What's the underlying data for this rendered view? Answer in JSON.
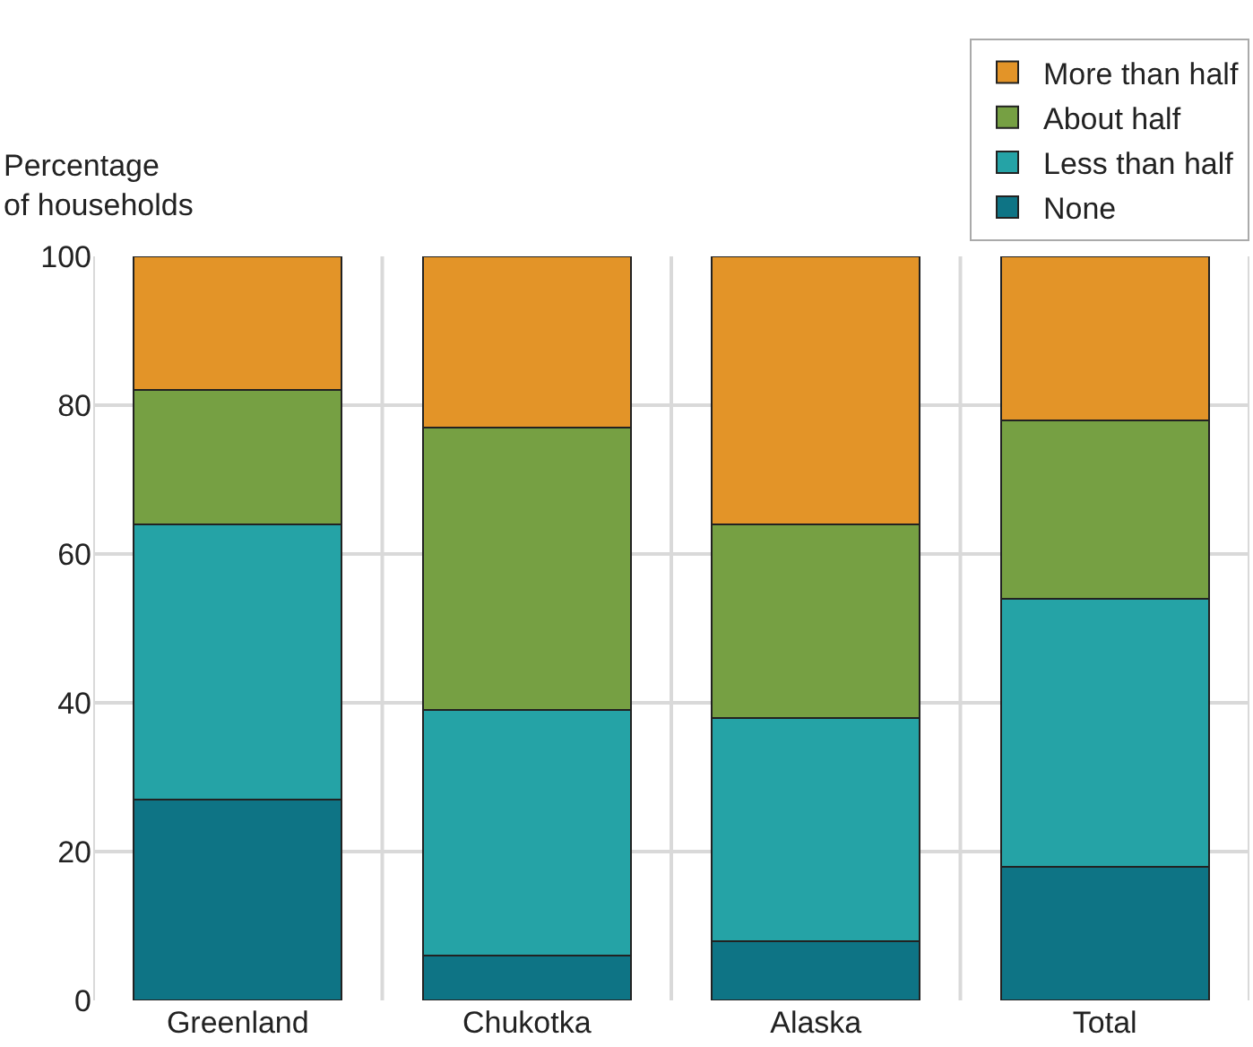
{
  "chart_data": {
    "type": "bar",
    "stacked": true,
    "ylabel": "Percentage\nof households",
    "categories": [
      "Greenland",
      "Chukotka",
      "Alaska",
      "Total"
    ],
    "series": [
      {
        "name": "None",
        "color": "#0e7485",
        "values": [
          27,
          6,
          8,
          18
        ]
      },
      {
        "name": "Less than half",
        "color": "#25a3a6",
        "values": [
          37,
          33,
          30,
          36
        ]
      },
      {
        "name": "About half",
        "color": "#76a043",
        "values": [
          18,
          38,
          26,
          24
        ]
      },
      {
        "name": "More than half",
        "color": "#e39428",
        "values": [
          18,
          23,
          36,
          22
        ]
      }
    ],
    "ylim": [
      0,
      100
    ],
    "yticks": [
      0,
      20,
      40,
      60,
      80,
      100
    ],
    "grid": true,
    "legend": "top right"
  }
}
